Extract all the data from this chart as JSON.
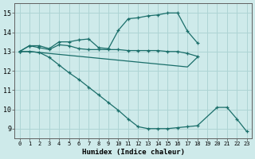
{
  "xlabel": "Humidex (Indice chaleur)",
  "xlim": [
    -0.5,
    23.5
  ],
  "ylim": [
    8.5,
    15.5
  ],
  "yticks": [
    9,
    10,
    11,
    12,
    13,
    14,
    15
  ],
  "xticks": [
    0,
    1,
    2,
    3,
    4,
    5,
    6,
    7,
    8,
    9,
    10,
    11,
    12,
    13,
    14,
    15,
    16,
    17,
    18,
    19,
    20,
    21,
    22,
    23
  ],
  "bg_color": "#ceeaea",
  "grid_color": "#aed4d4",
  "line_color": "#1a6e6a",
  "lines": [
    {
      "x": [
        0,
        1,
        2,
        3,
        4,
        5,
        6,
        7,
        8,
        9,
        10,
        11,
        12,
        13,
        14,
        15,
        16,
        17,
        18
      ],
      "y": [
        13.0,
        13.3,
        13.3,
        13.15,
        13.5,
        13.5,
        13.6,
        13.65,
        13.2,
        13.15,
        14.1,
        14.7,
        14.75,
        14.85,
        14.9,
        15.0,
        15.0,
        14.05,
        13.45
      ],
      "marker": true
    },
    {
      "x": [
        0,
        1,
        2,
        3,
        4,
        5,
        6,
        7,
        8,
        9,
        10,
        11,
        12,
        13,
        14,
        15,
        16,
        17,
        18
      ],
      "y": [
        13.0,
        13.3,
        13.2,
        13.1,
        13.35,
        13.3,
        13.15,
        13.1,
        13.1,
        13.1,
        13.1,
        13.05,
        13.05,
        13.05,
        13.05,
        13.0,
        13.0,
        12.9,
        12.75
      ],
      "marker": true
    },
    {
      "x": [
        0,
        1,
        2,
        3,
        4,
        5,
        6,
        7,
        8,
        9,
        10,
        11,
        12,
        13,
        14,
        15,
        16,
        17,
        18
      ],
      "y": [
        13.0,
        13.0,
        12.95,
        12.9,
        12.85,
        12.8,
        12.75,
        12.7,
        12.65,
        12.6,
        12.55,
        12.5,
        12.45,
        12.4,
        12.35,
        12.3,
        12.25,
        12.2,
        12.7
      ],
      "marker": false
    },
    {
      "x": [
        0,
        1,
        2,
        3,
        4,
        5,
        6,
        7,
        8,
        9,
        10,
        11,
        12,
        13,
        14,
        15,
        16,
        17,
        18,
        20,
        21,
        22,
        23
      ],
      "y": [
        13.0,
        13.0,
        12.95,
        12.7,
        12.3,
        11.9,
        11.55,
        11.15,
        10.75,
        10.35,
        9.95,
        9.5,
        9.1,
        9.0,
        9.0,
        9.0,
        9.05,
        9.1,
        9.15,
        10.1,
        10.1,
        9.5,
        8.85
      ],
      "marker": true
    }
  ]
}
